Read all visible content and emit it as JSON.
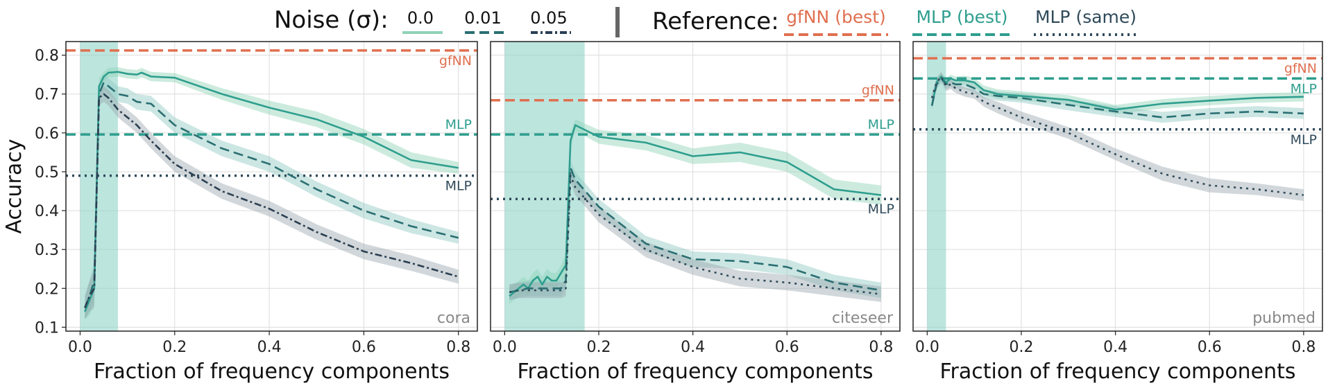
{
  "legend": {
    "noise_title": "Noise (σ):",
    "noise_items": [
      {
        "label": "0.0",
        "color": "#8fd3b6",
        "dash": "solid"
      },
      {
        "label": "0.01",
        "color": "#2a6f72",
        "dash": "dashed"
      },
      {
        "label": "0.05",
        "color": "#2a3f52",
        "dash": "dashdot"
      }
    ],
    "reference_title": "Reference:",
    "reference_items": [
      {
        "label": "gfNN (best)",
        "color": "#e07050",
        "dash": "dashed"
      },
      {
        "label": "MLP (best)",
        "color": "#2e9e8e",
        "dash": "dashed"
      },
      {
        "label": "MLP (same)",
        "color": "#2f4a5a",
        "dash": "dotted"
      }
    ]
  },
  "chart_data": [
    {
      "type": "line",
      "dataset": "cora",
      "xlabel": "Fraction of frequency components",
      "ylabel": "Accuracy",
      "xlim": [
        -0.03,
        0.84
      ],
      "ylim": [
        0.09,
        0.835
      ],
      "xticks": [
        "0.0",
        "0.2",
        "0.4",
        "0.6",
        "0.8"
      ],
      "xtick_values": [
        0.0,
        0.2,
        0.4,
        0.6,
        0.8
      ],
      "yticks": [
        "0.1",
        "0.2",
        "0.3",
        "0.4",
        "0.5",
        "0.6",
        "0.7",
        "0.8"
      ],
      "ytick_values": [
        0.1,
        0.2,
        0.3,
        0.4,
        0.5,
        0.6,
        0.7,
        0.8
      ],
      "grid": true,
      "shaded_region": [
        0.0,
        0.08
      ],
      "references": [
        {
          "name": "gfNN",
          "value": 0.812,
          "color": "#e07050",
          "style": "dashed",
          "label": "gfNN",
          "label_pos": "below"
        },
        {
          "name": "MLP",
          "value": 0.596,
          "color": "#2e9e8e",
          "style": "dashed",
          "label": "MLP",
          "label_pos": "above"
        },
        {
          "name": "MLP",
          "value": 0.49,
          "color": "#2f4a5a",
          "style": "dotted",
          "label": "MLP",
          "label_pos": "below"
        }
      ],
      "series": [
        {
          "noise": "0.0",
          "color": "#2e9e8e",
          "band": "#8fd3b6",
          "style": "solid",
          "x": [
            0.01,
            0.02,
            0.03,
            0.04,
            0.05,
            0.06,
            0.08,
            0.1,
            0.12,
            0.13,
            0.15,
            0.2,
            0.3,
            0.4,
            0.5,
            0.6,
            0.7,
            0.8
          ],
          "y": [
            0.14,
            0.17,
            0.2,
            0.72,
            0.745,
            0.755,
            0.757,
            0.752,
            0.75,
            0.755,
            0.745,
            0.742,
            0.7,
            0.665,
            0.635,
            0.59,
            0.53,
            0.51
          ],
          "err": [
            0.02,
            0.04,
            0.04,
            0.02,
            0.012,
            0.012,
            0.012,
            0.012,
            0.012,
            0.012,
            0.012,
            0.012,
            0.015,
            0.018,
            0.02,
            0.02,
            0.02,
            0.015
          ]
        },
        {
          "noise": "0.01",
          "color": "#2a6f72",
          "band": "#8fc7c0",
          "style": "dashed",
          "x": [
            0.01,
            0.02,
            0.03,
            0.04,
            0.05,
            0.06,
            0.08,
            0.1,
            0.12,
            0.15,
            0.2,
            0.3,
            0.4,
            0.5,
            0.6,
            0.7,
            0.8
          ],
          "y": [
            0.15,
            0.18,
            0.22,
            0.7,
            0.73,
            0.72,
            0.7,
            0.695,
            0.68,
            0.675,
            0.62,
            0.56,
            0.52,
            0.455,
            0.4,
            0.36,
            0.33
          ],
          "err": [
            0.03,
            0.04,
            0.05,
            0.02,
            0.02,
            0.02,
            0.02,
            0.02,
            0.02,
            0.02,
            0.02,
            0.02,
            0.02,
            0.02,
            0.02,
            0.018,
            0.015
          ]
        },
        {
          "noise": "0.05",
          "color": "#2a3f52",
          "band": "#9aa6ae",
          "style": "dashdot",
          "x": [
            0.01,
            0.02,
            0.03,
            0.04,
            0.05,
            0.06,
            0.08,
            0.1,
            0.12,
            0.15,
            0.2,
            0.3,
            0.4,
            0.5,
            0.6,
            0.7,
            0.8
          ],
          "y": [
            0.15,
            0.18,
            0.2,
            0.69,
            0.7,
            0.69,
            0.66,
            0.64,
            0.62,
            0.58,
            0.52,
            0.45,
            0.405,
            0.345,
            0.295,
            0.265,
            0.23
          ],
          "err": [
            0.03,
            0.04,
            0.05,
            0.02,
            0.02,
            0.02,
            0.02,
            0.02,
            0.02,
            0.02,
            0.02,
            0.02,
            0.02,
            0.02,
            0.02,
            0.02,
            0.018
          ]
        }
      ]
    },
    {
      "type": "line",
      "dataset": "citeseer",
      "xlabel": "Fraction of frequency components",
      "ylabel": "",
      "xlim": [
        -0.03,
        0.84
      ],
      "ylim": [
        0.09,
        0.835
      ],
      "xticks": [
        "0.0",
        "0.2",
        "0.4",
        "0.6",
        "0.8"
      ],
      "xtick_values": [
        0.0,
        0.2,
        0.4,
        0.6,
        0.8
      ],
      "yticks": [],
      "ytick_values": [
        0.1,
        0.2,
        0.3,
        0.4,
        0.5,
        0.6,
        0.7,
        0.8
      ],
      "grid": true,
      "shaded_region": [
        0.0,
        0.17
      ],
      "references": [
        {
          "name": "gfNN",
          "value": 0.684,
          "color": "#e07050",
          "style": "dashed",
          "label": "gfNN",
          "label_pos": "above"
        },
        {
          "name": "MLP",
          "value": 0.596,
          "color": "#2e9e8e",
          "style": "dashed",
          "label": "MLP",
          "label_pos": "above"
        },
        {
          "name": "MLP",
          "value": 0.43,
          "color": "#2f4a5a",
          "style": "dotted",
          "label": "MLP",
          "label_pos": "below"
        }
      ],
      "series": [
        {
          "noise": "0.0",
          "color": "#2e9e8e",
          "band": "#8fd3b6",
          "style": "solid",
          "x": [
            0.01,
            0.02,
            0.03,
            0.04,
            0.05,
            0.06,
            0.07,
            0.08,
            0.09,
            0.1,
            0.11,
            0.12,
            0.13,
            0.14,
            0.15,
            0.2,
            0.3,
            0.4,
            0.5,
            0.6,
            0.7,
            0.8
          ],
          "y": [
            0.18,
            0.19,
            0.2,
            0.21,
            0.2,
            0.22,
            0.23,
            0.21,
            0.23,
            0.22,
            0.22,
            0.24,
            0.26,
            0.58,
            0.62,
            0.59,
            0.575,
            0.54,
            0.55,
            0.525,
            0.455,
            0.44
          ],
          "err": [
            0.02,
            0.02,
            0.02,
            0.02,
            0.02,
            0.02,
            0.02,
            0.02,
            0.02,
            0.02,
            0.02,
            0.02,
            0.03,
            0.02,
            0.015,
            0.018,
            0.02,
            0.02,
            0.025,
            0.025,
            0.025,
            0.025
          ]
        },
        {
          "noise": "0.01",
          "color": "#2a6f72",
          "band": "#8fc7c0",
          "style": "dashed",
          "x": [
            0.01,
            0.03,
            0.05,
            0.08,
            0.1,
            0.12,
            0.13,
            0.14,
            0.15,
            0.2,
            0.3,
            0.4,
            0.5,
            0.6,
            0.7,
            0.8
          ],
          "y": [
            0.19,
            0.195,
            0.2,
            0.2,
            0.2,
            0.2,
            0.22,
            0.51,
            0.48,
            0.41,
            0.315,
            0.275,
            0.27,
            0.255,
            0.215,
            0.195
          ],
          "err": [
            0.02,
            0.02,
            0.02,
            0.02,
            0.02,
            0.02,
            0.02,
            0.02,
            0.02,
            0.02,
            0.02,
            0.02,
            0.02,
            0.02,
            0.02,
            0.02
          ]
        },
        {
          "noise": "0.05",
          "color": "#2f4a5a",
          "band": "#9aa6ae",
          "style": "dotted",
          "x": [
            0.01,
            0.03,
            0.05,
            0.08,
            0.1,
            0.12,
            0.13,
            0.14,
            0.15,
            0.2,
            0.3,
            0.4,
            0.5,
            0.6,
            0.7,
            0.8
          ],
          "y": [
            0.19,
            0.195,
            0.195,
            0.195,
            0.195,
            0.195,
            0.2,
            0.49,
            0.46,
            0.39,
            0.3,
            0.255,
            0.225,
            0.215,
            0.2,
            0.185
          ],
          "err": [
            0.02,
            0.02,
            0.02,
            0.02,
            0.02,
            0.02,
            0.02,
            0.02,
            0.02,
            0.02,
            0.02,
            0.02,
            0.02,
            0.02,
            0.02,
            0.02
          ]
        }
      ]
    },
    {
      "type": "line",
      "dataset": "pubmed",
      "xlabel": "Fraction of frequency components",
      "ylabel": "",
      "xlim": [
        -0.03,
        0.84
      ],
      "ylim": [
        0.09,
        0.835
      ],
      "xticks": [
        "0.0",
        "0.2",
        "0.4",
        "0.6",
        "0.8"
      ],
      "xtick_values": [
        0.0,
        0.2,
        0.4,
        0.6,
        0.8
      ],
      "yticks": [],
      "ytick_values": [
        0.1,
        0.2,
        0.3,
        0.4,
        0.5,
        0.6,
        0.7,
        0.8
      ],
      "grid": true,
      "shaded_region": [
        0.0,
        0.04
      ],
      "references": [
        {
          "name": "gfNN",
          "value": 0.792,
          "color": "#e07050",
          "style": "dashed",
          "label": "gfNN",
          "label_pos": "below"
        },
        {
          "name": "MLP",
          "value": 0.74,
          "color": "#2e9e8e",
          "style": "dashed",
          "label": "MLP",
          "label_pos": "below"
        },
        {
          "name": "MLP",
          "value": 0.609,
          "color": "#2f4a5a",
          "style": "dotted",
          "label": "MLP",
          "label_pos": "below"
        }
      ],
      "series": [
        {
          "noise": "0.0",
          "color": "#2e9e8e",
          "band": "#8fd3b6",
          "style": "solid",
          "x": [
            0.01,
            0.02,
            0.03,
            0.04,
            0.05,
            0.06,
            0.08,
            0.1,
            0.12,
            0.15,
            0.2,
            0.3,
            0.4,
            0.5,
            0.6,
            0.7,
            0.8
          ],
          "y": [
            0.67,
            0.73,
            0.745,
            0.73,
            0.74,
            0.735,
            0.735,
            0.73,
            0.71,
            0.7,
            0.695,
            0.685,
            0.66,
            0.675,
            0.683,
            0.69,
            0.693
          ],
          "err": [
            0.01,
            0.01,
            0.01,
            0.01,
            0.01,
            0.01,
            0.012,
            0.012,
            0.012,
            0.012,
            0.012,
            0.012,
            0.012,
            0.012,
            0.012,
            0.012,
            0.012
          ]
        },
        {
          "noise": "0.01",
          "color": "#2a6f72",
          "band": "#8fc7c0",
          "style": "dashed",
          "x": [
            0.01,
            0.02,
            0.03,
            0.04,
            0.05,
            0.06,
            0.08,
            0.1,
            0.12,
            0.15,
            0.2,
            0.3,
            0.4,
            0.5,
            0.6,
            0.7,
            0.8
          ],
          "y": [
            0.67,
            0.725,
            0.74,
            0.725,
            0.73,
            0.725,
            0.725,
            0.715,
            0.7,
            0.695,
            0.69,
            0.672,
            0.655,
            0.64,
            0.65,
            0.655,
            0.65
          ],
          "err": [
            0.01,
            0.012,
            0.012,
            0.012,
            0.012,
            0.012,
            0.012,
            0.012,
            0.012,
            0.012,
            0.012,
            0.014,
            0.014,
            0.014,
            0.014,
            0.014,
            0.014
          ]
        },
        {
          "noise": "0.05",
          "color": "#2f4a5a",
          "band": "#9aa6ae",
          "style": "dotted",
          "x": [
            0.01,
            0.02,
            0.03,
            0.04,
            0.05,
            0.06,
            0.08,
            0.1,
            0.12,
            0.15,
            0.2,
            0.3,
            0.4,
            0.5,
            0.6,
            0.7,
            0.8
          ],
          "y": [
            0.69,
            0.73,
            0.745,
            0.72,
            0.725,
            0.715,
            0.705,
            0.7,
            0.68,
            0.665,
            0.64,
            0.6,
            0.545,
            0.495,
            0.465,
            0.455,
            0.44
          ],
          "err": [
            0.01,
            0.012,
            0.012,
            0.012,
            0.012,
            0.012,
            0.012,
            0.012,
            0.012,
            0.015,
            0.015,
            0.015,
            0.015,
            0.018,
            0.018,
            0.015,
            0.015
          ]
        }
      ]
    }
  ]
}
